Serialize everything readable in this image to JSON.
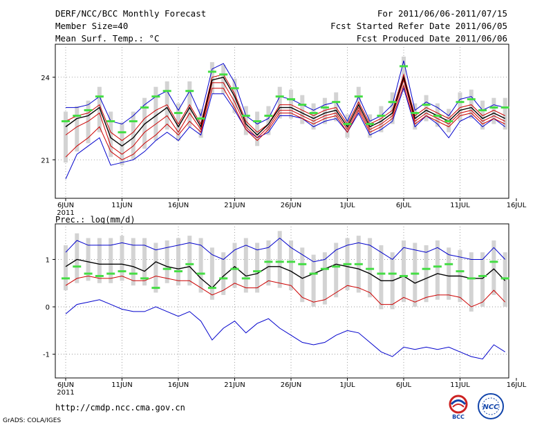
{
  "header": {
    "title": "DERF/NCC/BCC Monthly Forecast",
    "member": "Member Size=40",
    "variable": "Mean Surf. Temp.: °C",
    "forecast_range": "For 2011/06/06-2011/07/15",
    "refer_date": "Fcst Started Refer Date 2011/06/05",
    "produced_date": "Fcst Produced Date 2011/06/06"
  },
  "footer": {
    "url": "http://cmdp.ncc.cma.gov.cn",
    "grads": "GrADS: COLA/IGES",
    "logo_left": "BCC",
    "logo_right": "NCC"
  },
  "colors": {
    "ensemble_max_min": "#0000cc",
    "spread": "#cc0000",
    "mean": "#000000",
    "median": "#44dd44",
    "box": "#d3d3d3",
    "grid": "#888888"
  },
  "chart_data": [
    {
      "type": "line",
      "panel": "temperature",
      "title": "Mean Surf. Temp.: °C",
      "x_tick_labels": [
        "6JUN",
        "11JUN",
        "16JUN",
        "21JUN",
        "26JUN",
        "1JUL",
        "6JUL",
        "11JUL",
        "16JUL"
      ],
      "x_year_label": "2011",
      "y_ticks": [
        21,
        24
      ],
      "ylim": [
        19.6,
        25.2
      ],
      "days": 40,
      "series": [
        {
          "name": "max",
          "values": [
            22.9,
            22.9,
            23.0,
            23.3,
            22.4,
            22.3,
            22.6,
            23.0,
            23.3,
            23.5,
            22.8,
            23.5,
            22.6,
            24.3,
            24.5,
            23.8,
            22.6,
            22.3,
            22.5,
            23.3,
            23.2,
            23.0,
            22.8,
            23.0,
            23.1,
            22.4,
            23.3,
            22.4,
            22.6,
            23.0,
            24.6,
            22.8,
            23.1,
            22.9,
            22.6,
            23.2,
            23.3,
            22.8,
            23.0,
            22.9
          ]
        },
        {
          "name": "upper",
          "values": [
            22.4,
            22.6,
            22.7,
            23.0,
            22.0,
            21.7,
            22.0,
            22.5,
            22.8,
            23.0,
            22.3,
            23.0,
            22.3,
            24.0,
            24.1,
            23.4,
            22.4,
            22.0,
            22.3,
            23.0,
            23.0,
            22.8,
            22.6,
            22.8,
            22.9,
            22.3,
            23.1,
            22.3,
            22.5,
            22.8,
            24.1,
            22.6,
            22.9,
            22.7,
            22.5,
            22.9,
            23.0,
            22.6,
            22.8,
            22.6
          ]
        },
        {
          "name": "mean",
          "values": [
            22.2,
            22.5,
            22.6,
            22.9,
            21.8,
            21.5,
            21.8,
            22.3,
            22.6,
            22.9,
            22.2,
            22.9,
            22.2,
            23.9,
            24.0,
            23.3,
            22.3,
            21.9,
            22.3,
            22.9,
            22.9,
            22.7,
            22.5,
            22.7,
            22.8,
            22.2,
            23.0,
            22.2,
            22.4,
            22.7,
            24.0,
            22.5,
            22.8,
            22.6,
            22.4,
            22.8,
            22.9,
            22.5,
            22.7,
            22.5
          ]
        },
        {
          "name": "lower",
          "values": [
            21.9,
            22.2,
            22.4,
            22.7,
            21.5,
            21.2,
            21.5,
            22.0,
            22.3,
            22.6,
            22.0,
            22.7,
            22.1,
            23.8,
            23.8,
            23.1,
            22.2,
            21.8,
            22.2,
            22.8,
            22.8,
            22.6,
            22.4,
            22.6,
            22.7,
            22.1,
            22.9,
            22.1,
            22.3,
            22.6,
            23.9,
            22.4,
            22.7,
            22.5,
            22.3,
            22.7,
            22.8,
            22.4,
            22.6,
            22.4
          ]
        },
        {
          "name": "spread_low",
          "values": [
            21.1,
            21.5,
            21.8,
            22.2,
            21.3,
            21.0,
            21.2,
            21.6,
            21.9,
            22.3,
            21.9,
            22.4,
            22.0,
            23.6,
            23.6,
            22.9,
            22.1,
            21.7,
            22.1,
            22.7,
            22.7,
            22.5,
            22.3,
            22.5,
            22.6,
            22.0,
            22.8,
            22.0,
            22.2,
            22.5,
            23.7,
            22.3,
            22.6,
            22.4,
            22.2,
            22.6,
            22.7,
            22.3,
            22.5,
            22.3
          ]
        },
        {
          "name": "min",
          "values": [
            20.3,
            21.2,
            21.5,
            21.8,
            20.8,
            20.9,
            21.0,
            21.3,
            21.7,
            22.0,
            21.7,
            22.2,
            21.9,
            23.4,
            23.4,
            22.8,
            22.1,
            21.8,
            22.0,
            22.6,
            22.6,
            22.5,
            22.2,
            22.4,
            22.5,
            22.0,
            22.7,
            21.9,
            22.1,
            22.4,
            23.6,
            22.2,
            22.6,
            22.3,
            21.8,
            22.4,
            22.6,
            22.2,
            22.5,
            22.2
          ]
        },
        {
          "name": "median",
          "values": [
            22.4,
            22.6,
            22.8,
            23.3,
            22.4,
            22.0,
            22.4,
            22.9,
            23.3,
            23.5,
            22.7,
            23.5,
            22.5,
            24.2,
            24.1,
            23.6,
            22.6,
            22.4,
            22.6,
            23.3,
            23.2,
            23.0,
            22.7,
            22.9,
            23.1,
            22.3,
            23.3,
            22.3,
            22.6,
            23.1,
            24.4,
            22.7,
            23.0,
            22.6,
            22.4,
            23.1,
            23.2,
            22.8,
            22.9,
            22.9
          ]
        }
      ]
    },
    {
      "type": "line",
      "panel": "precipitation",
      "title": "Prec.: log(mm/d)",
      "x_tick_labels": [
        "6JUN",
        "11JUN",
        "16JUN",
        "21JUN",
        "26JUN",
        "1JUL",
        "6JUL",
        "11JUL",
        "16JUL"
      ],
      "x_year_label": "2011",
      "y_ticks": [
        -1,
        0,
        1
      ],
      "ylim": [
        -1.5,
        1.75
      ],
      "days": 40,
      "series": [
        {
          "name": "max",
          "values": [
            1.15,
            1.4,
            1.3,
            1.3,
            1.3,
            1.35,
            1.3,
            1.3,
            1.2,
            1.25,
            1.3,
            1.35,
            1.3,
            1.1,
            1.0,
            1.2,
            1.3,
            1.2,
            1.25,
            1.45,
            1.25,
            1.1,
            0.95,
            1.0,
            1.2,
            1.3,
            1.35,
            1.3,
            1.15,
            1.0,
            1.25,
            1.2,
            1.15,
            1.25,
            1.1,
            1.05,
            1.0,
            1.0,
            1.25,
            1.0
          ]
        },
        {
          "name": "mean",
          "values": [
            0.85,
            1.0,
            0.95,
            0.9,
            0.9,
            0.9,
            0.85,
            0.75,
            0.95,
            0.85,
            0.8,
            0.85,
            0.6,
            0.4,
            0.65,
            0.85,
            0.65,
            0.7,
            0.85,
            0.85,
            0.75,
            0.6,
            0.7,
            0.8,
            0.9,
            0.85,
            0.8,
            0.7,
            0.55,
            0.55,
            0.65,
            0.5,
            0.6,
            0.7,
            0.65,
            0.65,
            0.6,
            0.6,
            0.8,
            0.55
          ]
        },
        {
          "name": "spread_low",
          "values": [
            0.45,
            0.6,
            0.65,
            0.6,
            0.6,
            0.65,
            0.55,
            0.55,
            0.65,
            0.6,
            0.55,
            0.55,
            0.4,
            0.25,
            0.35,
            0.5,
            0.4,
            0.4,
            0.55,
            0.5,
            0.45,
            0.2,
            0.1,
            0.15,
            0.3,
            0.45,
            0.4,
            0.3,
            0.05,
            0.05,
            0.2,
            0.1,
            0.2,
            0.25,
            0.25,
            0.2,
            0.0,
            0.1,
            0.35,
            0.1
          ]
        },
        {
          "name": "min",
          "values": [
            -0.15,
            0.05,
            0.1,
            0.15,
            0.05,
            -0.05,
            -0.1,
            -0.1,
            0.0,
            -0.1,
            -0.2,
            -0.1,
            -0.3,
            -0.7,
            -0.45,
            -0.3,
            -0.55,
            -0.35,
            -0.25,
            -0.45,
            -0.6,
            -0.75,
            -0.8,
            -0.75,
            -0.6,
            -0.5,
            -0.55,
            -0.75,
            -0.95,
            -1.05,
            -0.85,
            -0.9,
            -0.85,
            -0.9,
            -0.85,
            -0.95,
            -1.05,
            -1.1,
            -0.8,
            -0.95
          ]
        },
        {
          "name": "median",
          "values": [
            0.6,
            0.85,
            0.7,
            0.65,
            0.7,
            0.75,
            0.7,
            0.6,
            0.4,
            0.8,
            0.75,
            0.9,
            0.7,
            0.4,
            0.6,
            0.8,
            0.6,
            0.75,
            0.95,
            0.95,
            0.95,
            0.9,
            0.7,
            0.8,
            0.85,
            0.9,
            0.9,
            0.8,
            0.7,
            0.7,
            0.65,
            0.7,
            0.8,
            0.85,
            0.9,
            0.75,
            0.6,
            0.65,
            0.95,
            0.6
          ]
        }
      ]
    }
  ]
}
